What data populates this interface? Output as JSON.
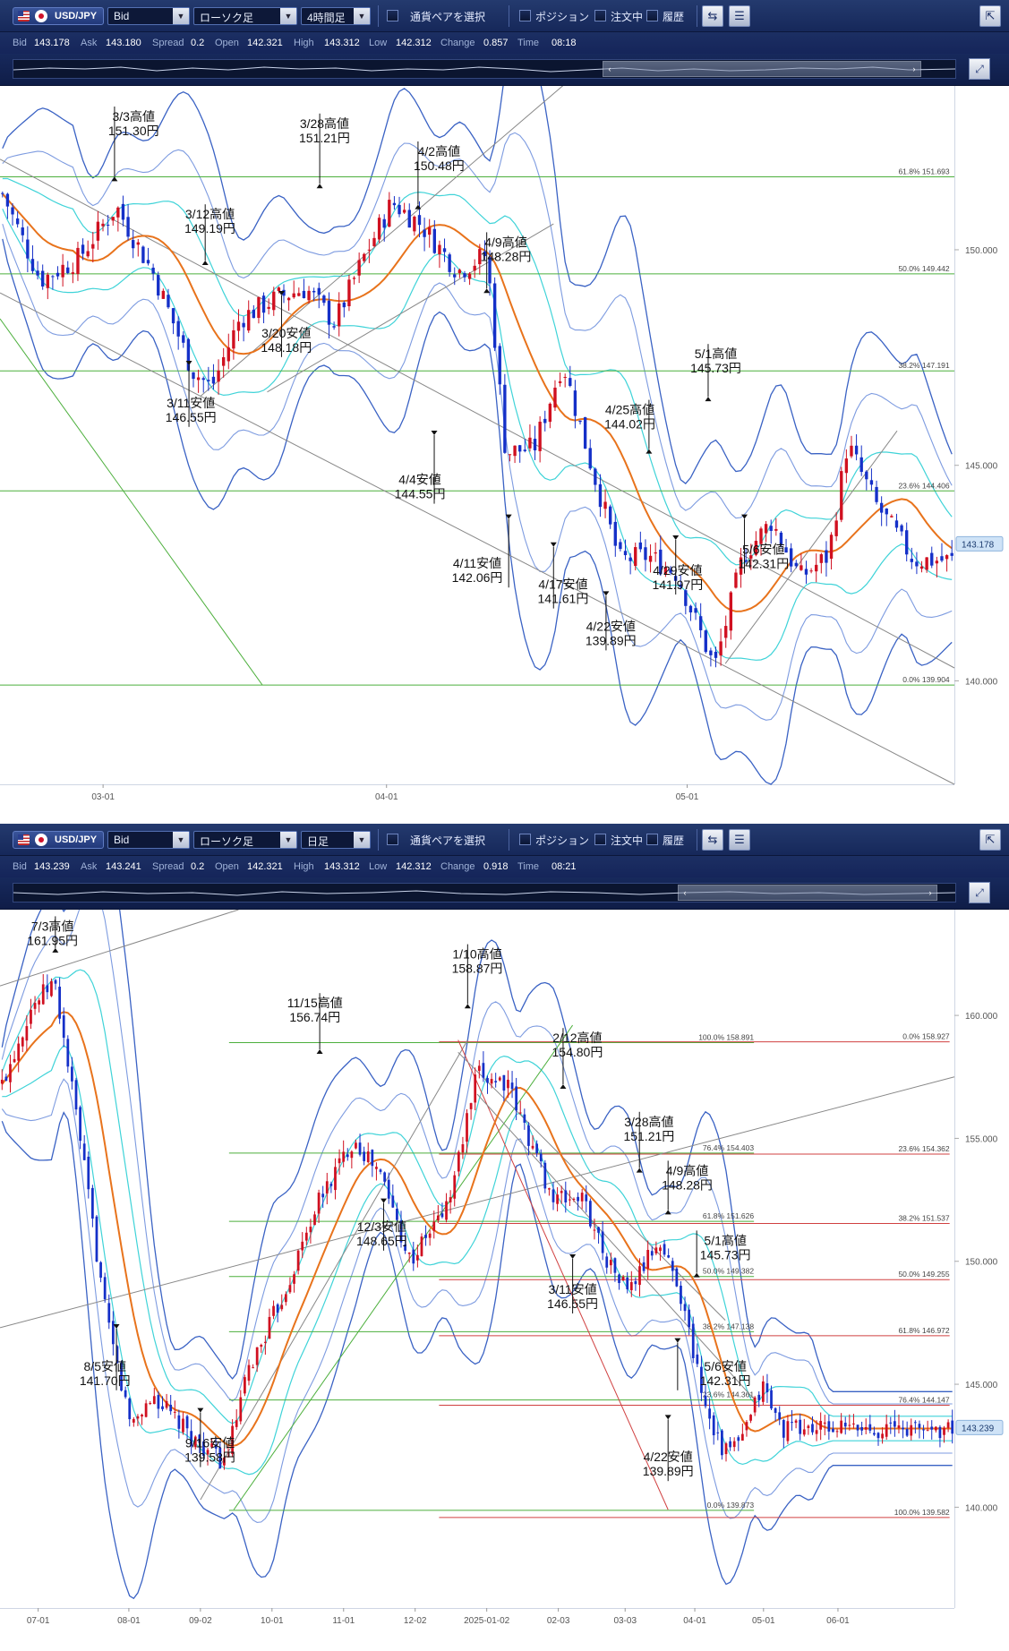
{
  "panels": [
    {
      "symbol": "USD/JPY",
      "price_type": "Bid",
      "chart_style": "ローソク足",
      "timeframe": "4時間足",
      "pair_select_label": "通貨ペアを選択",
      "position_label": "ポジション",
      "orders_label": "注文中",
      "history_label": "履歴",
      "info": {
        "bid_label": "Bid",
        "bid": "143.178",
        "ask_label": "Ask",
        "ask": "143.180",
        "spread_label": "Spread",
        "spread": "0.2",
        "open_label": "Open",
        "open": "142.321",
        "high_label": "High",
        "high": "143.312",
        "low_label": "Low",
        "low": "142.312",
        "change_label": "Change",
        "change": "0.857",
        "time_label": "Time",
        "time": "08:18"
      },
      "chart_data": {
        "type": "candlestick",
        "x_ticks": [
          "03-01",
          "04-01",
          "05-01"
        ],
        "y_ticks": [
          "150.000",
          "145.000",
          "140.000"
        ],
        "ylim": [
          137.6,
          153.8
        ],
        "current_price": "143.178",
        "fibonacci": [
          {
            "ratio": "61.8%",
            "price": "151.693",
            "value": 151.693
          },
          {
            "ratio": "50.0%",
            "price": "149.442",
            "value": 149.442
          },
          {
            "ratio": "38.2%",
            "price": "147.191",
            "value": 147.191
          },
          {
            "ratio": "23.6%",
            "price": "144.406",
            "value": 144.406
          },
          {
            "ratio": "0.0%",
            "price": "139.904",
            "value": 139.904
          }
        ],
        "annotations": [
          {
            "label": "3/3高値",
            "price": "151.30円"
          },
          {
            "label": "3/12高値",
            "price": "149.19円"
          },
          {
            "label": "3/28高値",
            "price": "151.21円"
          },
          {
            "label": "4/2高値",
            "price": "150.48円"
          },
          {
            "label": "4/9高値",
            "price": "148.28円"
          },
          {
            "label": "3/20安値",
            "price": "148.18円"
          },
          {
            "label": "3/11安値",
            "price": "146.55円"
          },
          {
            "label": "5/1高値",
            "price": "145.73円"
          },
          {
            "label": "4/25高値",
            "price": "144.02円"
          },
          {
            "label": "4/4安値",
            "price": "144.55円"
          },
          {
            "label": "4/11安値",
            "price": "142.06円"
          },
          {
            "label": "4/17安値",
            "price": "141.61円"
          },
          {
            "label": "4/29安値",
            "price": "141.97円"
          },
          {
            "label": "5/6安値",
            "price": "142.31円"
          },
          {
            "label": "4/22安値",
            "price": "139.89円"
          }
        ]
      }
    },
    {
      "symbol": "USD/JPY",
      "price_type": "Bid",
      "chart_style": "ローソク足",
      "timeframe": "日足",
      "pair_select_label": "通貨ペアを選択",
      "position_label": "ポジション",
      "orders_label": "注文中",
      "history_label": "履歴",
      "info": {
        "bid_label": "Bid",
        "bid": "143.239",
        "ask_label": "Ask",
        "ask": "143.241",
        "spread_label": "Spread",
        "spread": "0.2",
        "open_label": "Open",
        "open": "142.321",
        "high_label": "High",
        "high": "143.312",
        "low_label": "Low",
        "low": "142.312",
        "change_label": "Change",
        "change": "0.918",
        "time_label": "Time",
        "time": "08:21"
      },
      "chart_data": {
        "type": "candlestick",
        "x_ticks": [
          "07-01",
          "08-01",
          "09-02",
          "10-01",
          "11-01",
          "12-02",
          "2025-01-02",
          "02-03",
          "03-03",
          "04-01",
          "05-01",
          "06-01"
        ],
        "y_ticks": [
          "160.000",
          "155.000",
          "150.000",
          "145.000",
          "140.000"
        ],
        "ylim": [
          135.9,
          164.3
        ],
        "current_price": "143.239",
        "fibonacci_a": [
          {
            "ratio": "100.0%",
            "price": "158.891",
            "value": 158.891
          },
          {
            "ratio": "76.4%",
            "price": "154.403",
            "value": 154.403
          },
          {
            "ratio": "61.8%",
            "price": "151.626",
            "value": 151.626
          },
          {
            "ratio": "50.0%",
            "price": "149.382",
            "value": 149.382
          },
          {
            "ratio": "38.2%",
            "price": "147.138",
            "value": 147.138
          },
          {
            "ratio": "23.6%",
            "price": "144.361",
            "value": 144.361
          },
          {
            "ratio": "0.0%",
            "price": "139.873",
            "value": 139.873
          }
        ],
        "fibonacci_b": [
          {
            "ratio": "0.0%",
            "price": "158.927",
            "value": 158.927
          },
          {
            "ratio": "23.6%",
            "price": "154.362",
            "value": 154.362
          },
          {
            "ratio": "38.2%",
            "price": "151.537",
            "value": 151.537
          },
          {
            "ratio": "50.0%",
            "price": "149.255",
            "value": 149.255
          },
          {
            "ratio": "61.8%",
            "price": "146.972",
            "value": 146.972
          },
          {
            "ratio": "76.4%",
            "price": "144.147",
            "value": 144.147
          },
          {
            "ratio": "100.0%",
            "price": "139.582",
            "value": 139.582
          }
        ],
        "annotations": [
          {
            "label": "7/3高値",
            "price": "161.95円"
          },
          {
            "label": "1/10高値",
            "price": "158.87円"
          },
          {
            "label": "11/15高値",
            "price": "156.74円"
          },
          {
            "label": "2/12高値",
            "price": "154.80円"
          },
          {
            "label": "3/28高値",
            "price": "151.21円"
          },
          {
            "label": "4/9高値",
            "price": "148.28円"
          },
          {
            "label": "12/3安値",
            "price": "148.65円"
          },
          {
            "label": "5/1高値",
            "price": "145.73円"
          },
          {
            "label": "3/11安値",
            "price": "146.55円"
          },
          {
            "label": "8/5安値",
            "price": "141.70円"
          },
          {
            "label": "5/6安値",
            "price": "142.31円"
          },
          {
            "label": "9/16安値",
            "price": "139.58円"
          },
          {
            "label": "4/22安値",
            "price": "139.89円"
          }
        ]
      }
    }
  ],
  "colors": {
    "bull": "#d01020",
    "bear": "#1530c8",
    "ma": "#e8731c",
    "band_outer": "#3a62c4",
    "band_mid": "#7d9be0",
    "band_inner": "#3fd3d8",
    "fib": "#4caf3c",
    "fib_brown": "#8a5a10",
    "fib_red": "#d04040",
    "trend": "#888888"
  }
}
